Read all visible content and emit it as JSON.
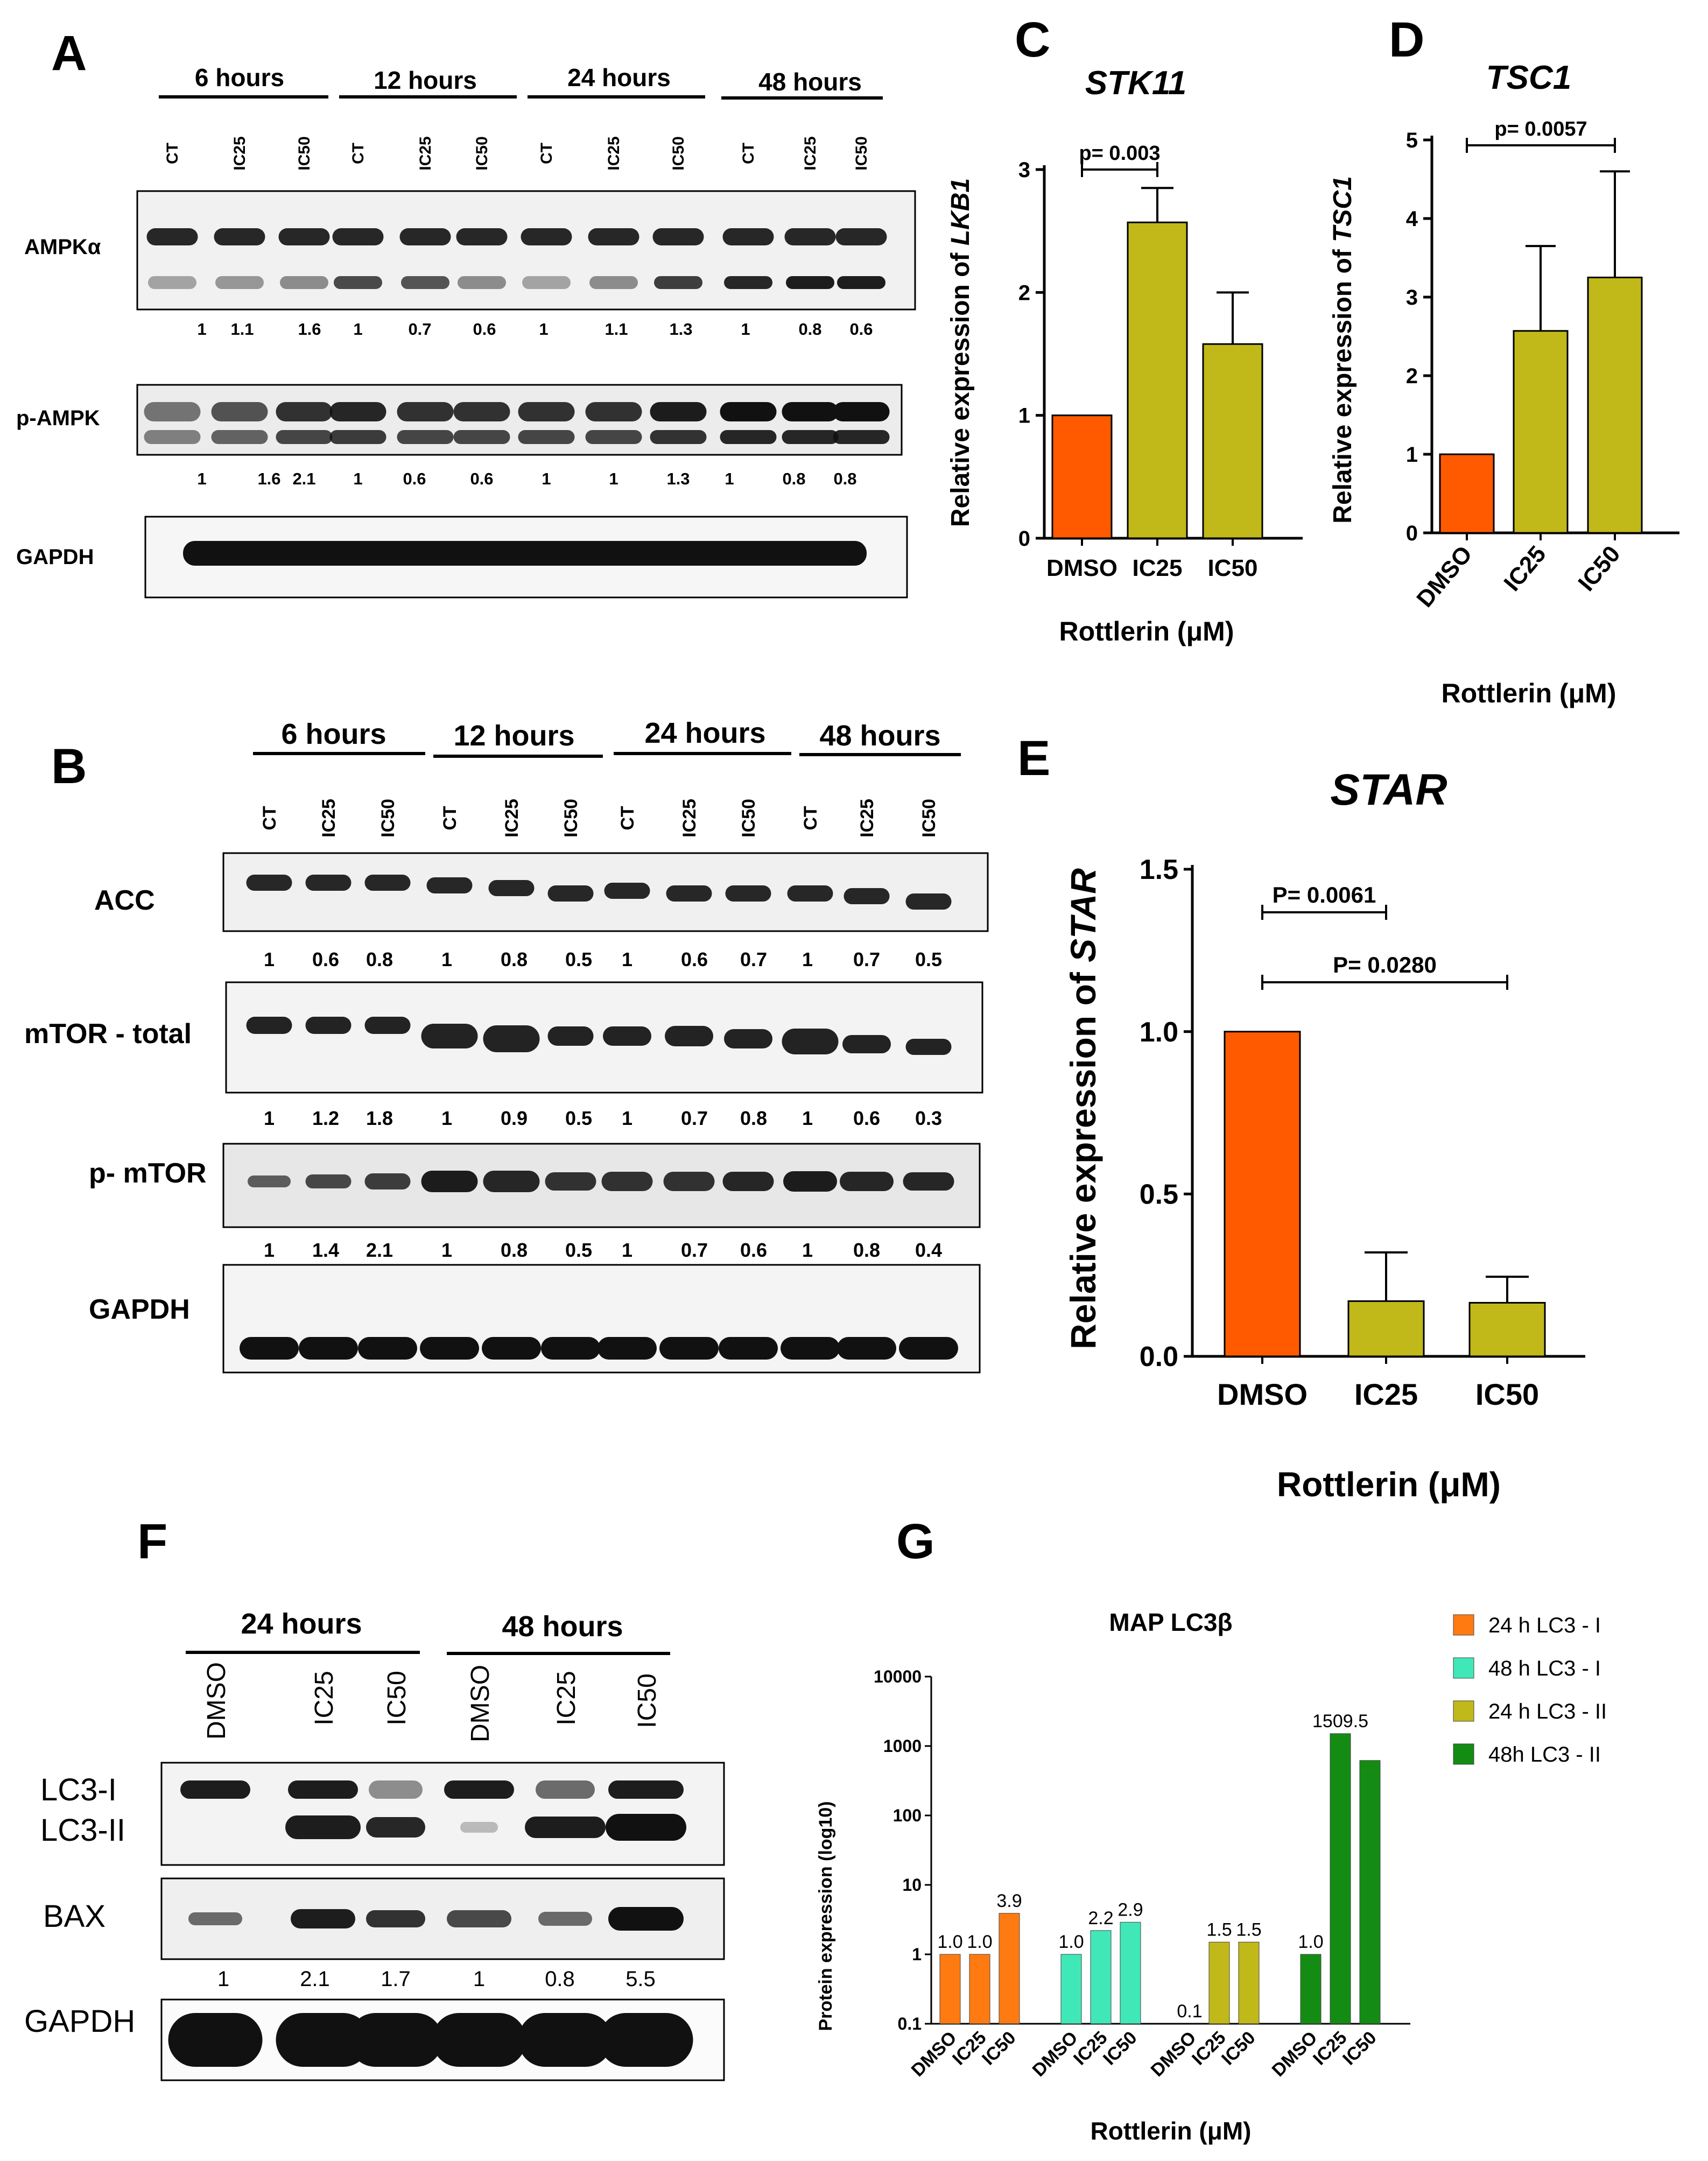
{
  "panel_labels": {
    "a": "A",
    "b": "B",
    "c": "C",
    "d": "D",
    "e": "E",
    "f": "F",
    "g": "G"
  },
  "blot_a": {
    "timepoints": [
      "6 hours",
      "12 hours",
      "24 hours",
      "48 hours"
    ],
    "lanes": [
      "CT",
      "IC25",
      "IC50",
      "CT",
      "IC25",
      "IC50",
      "CT",
      "IC25",
      "IC50",
      "CT",
      "IC25",
      "IC50"
    ],
    "rows": [
      {
        "label": "AMPKα",
        "quant": [
          "1",
          "1.1",
          "1.6",
          "1",
          "0.7",
          "0.6",
          "1",
          "1.1",
          "1.3",
          "1",
          "0.8",
          "0.6"
        ]
      },
      {
        "label": "p-AMPK",
        "quant": [
          "1",
          "1.6",
          "2.1",
          "1",
          "0.6",
          "0.6",
          "1",
          "1",
          "1.3",
          "1",
          "0.8",
          "0.8"
        ]
      },
      {
        "label": "GAPDH",
        "quant": []
      }
    ]
  },
  "blot_b": {
    "timepoints": [
      "6 hours",
      "12 hours",
      "24 hours",
      "48 hours"
    ],
    "lanes": [
      "CT",
      "IC25",
      "IC50",
      "CT",
      "IC25",
      "IC50",
      "CT",
      "IC25",
      "IC50",
      "CT",
      "IC25",
      "IC50"
    ],
    "rows": [
      {
        "label": "ACC",
        "quant": [
          "1",
          "0.6",
          "0.8",
          "1",
          "0.8",
          "0.5",
          "1",
          "0.6",
          "0.7",
          "1",
          "0.7",
          "0.5"
        ]
      },
      {
        "label": "mTOR - total",
        "quant": [
          "1",
          "1.2",
          "1.8",
          "1",
          "0.9",
          "0.5",
          "1",
          "0.7",
          "0.8",
          "1",
          "0.6",
          "0.3"
        ]
      },
      {
        "label": "p- mTOR",
        "quant": [
          "1",
          "1.4",
          "2.1",
          "1",
          "0.8",
          "0.5",
          "1",
          "0.7",
          "0.6",
          "1",
          "0.8",
          "0.4"
        ]
      },
      {
        "label": "GAPDH",
        "quant": []
      }
    ]
  },
  "blot_f": {
    "timepoints": [
      "24 hours",
      "48 hours"
    ],
    "lanes": [
      "DMSO",
      "IC25",
      "IC50",
      "DMSO",
      "IC25",
      "IC50"
    ],
    "row_labels": {
      "lc3_1": "LC3-I",
      "lc3_2": "LC3-II",
      "bax": "BAX",
      "gapdh": "GAPDH"
    },
    "bax_quant": [
      "1",
      "2.1",
      "1.7",
      "1",
      "0.8",
      "5.5"
    ]
  },
  "chart_data": [
    {
      "id": "C",
      "type": "bar",
      "title": "STK11",
      "ylabel_prefix": "Relative expression of ",
      "ylabel_gene": "LKB1",
      "xlabel": "Rottlerin (μM)",
      "categories": [
        "DMSO",
        "IC25",
        "IC50"
      ],
      "values": [
        1.0,
        2.57,
        1.58
      ],
      "errors": [
        0,
        0.28,
        0.42
      ],
      "ylim": [
        0,
        3
      ],
      "yticks": [
        "0",
        "1",
        "2",
        "3"
      ],
      "colors": [
        "#ff5a00",
        "#c1b81a",
        "#c1b81a"
      ],
      "annotations": [
        {
          "text": "p= 0.003",
          "from": "DMSO",
          "to": "IC25"
        }
      ]
    },
    {
      "id": "D",
      "type": "bar",
      "title": "TSC1",
      "ylabel_prefix": "Relative expression of ",
      "ylabel_gene": "TSC1",
      "xlabel": "Rottlerin (μM)",
      "categories": [
        "DMSO",
        "IC25",
        "IC50"
      ],
      "values": [
        1.0,
        2.57,
        3.25
      ],
      "errors": [
        0,
        1.08,
        1.35
      ],
      "ylim": [
        0,
        5
      ],
      "yticks": [
        "0",
        "1",
        "2",
        "3",
        "4",
        "5"
      ],
      "colors": [
        "#ff5a00",
        "#c1b81a",
        "#c1b81a"
      ],
      "annotations": [
        {
          "text": "p= 0.0057",
          "from": "DMSO",
          "to": "IC50"
        }
      ]
    },
    {
      "id": "E",
      "type": "bar",
      "title": "STAR",
      "ylabel_prefix": "Relative expression of ",
      "ylabel_gene": "STAR",
      "xlabel": "Rottlerin (μM)",
      "categories": [
        "DMSO",
        "IC25",
        "IC50"
      ],
      "values": [
        1.0,
        0.17,
        0.165
      ],
      "errors": [
        0,
        0.15,
        0.08
      ],
      "ylim": [
        0,
        1.5
      ],
      "yticks": [
        "0.0",
        "0.5",
        "1.0",
        "1.5"
      ],
      "colors": [
        "#ff5a00",
        "#c1b81a",
        "#c1b81a"
      ],
      "annotations": [
        {
          "text": "P= 0.0061",
          "from": "DMSO",
          "to": "IC25"
        },
        {
          "text": "P= 0.0280",
          "from": "DMSO",
          "to": "IC50"
        }
      ]
    },
    {
      "id": "G",
      "type": "bar",
      "title": "MAP LC3β",
      "ylabel": "Protein expression (log10)",
      "xlabel": "Rottlerin (μM)",
      "yscale": "log",
      "ylim": [
        0.1,
        10000
      ],
      "yticks": [
        "0.1",
        "1",
        "10",
        "100",
        "1000",
        "10000"
      ],
      "categories": [
        "DMSO",
        "IC25",
        "IC50"
      ],
      "series": [
        {
          "name": "24 h LC3 - I",
          "color": "#ff7b12",
          "values": [
            1.0,
            1.0,
            3.9
          ],
          "labels": [
            "1.0",
            "1.0",
            "3.9"
          ]
        },
        {
          "name": "48 h LC3 - I",
          "color": "#40e8b8",
          "values": [
            1.0,
            2.2,
            2.9
          ],
          "labels": [
            "1.0",
            "2.2",
            "2.9"
          ]
        },
        {
          "name": "24 h LC3 - II",
          "color": "#c1b81a",
          "values": [
            0.1,
            1.5,
            1.5
          ],
          "labels": [
            "0.1",
            "1.5",
            "1.5"
          ]
        },
        {
          "name": "48h LC3 - II",
          "color": "#148c14",
          "values": [
            1.0,
            1509.5,
            620
          ],
          "labels": [
            "1.0",
            "1509.5",
            ""
          ]
        }
      ]
    }
  ]
}
